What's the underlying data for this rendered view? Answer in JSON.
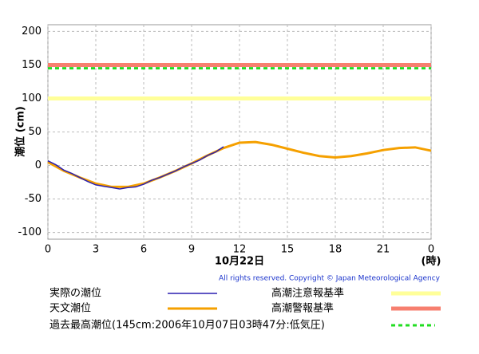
{
  "chart_data": {
    "type": "line",
    "y_label": "潮位 (cm)",
    "x_label": "10月22日",
    "x_unit_label": "(時)",
    "copyright": "All rights reserved. Copyright © Japan Meteorological Agency",
    "xlim": [
      0,
      24
    ],
    "xticks": [
      0,
      3,
      6,
      9,
      12,
      15,
      18,
      21,
      {
        "value": 24,
        "label": "0"
      }
    ],
    "ylim": [
      -110,
      210
    ],
    "yticks": [
      -100,
      -50,
      0,
      50,
      100,
      150,
      200
    ],
    "grid": true,
    "series": [
      {
        "name": "実際の潮位",
        "color": "#2a1fb0",
        "x": [
          0,
          0.5,
          1,
          1.5,
          2,
          2.5,
          3,
          3.5,
          4,
          4.5,
          5,
          5.5,
          6,
          6.5,
          7,
          7.5,
          8,
          8.5,
          9,
          9.5,
          10,
          10.5,
          11
        ],
        "values": [
          7,
          1,
          -7,
          -12,
          -18,
          -24,
          -29,
          -31,
          -33,
          -35,
          -33,
          -32,
          -28,
          -22,
          -18,
          -13,
          -8,
          -2,
          3,
          8,
          15,
          20,
          28
        ]
      },
      {
        "name": "天文潮位",
        "color": "#f5a000",
        "x": [
          0,
          1,
          2,
          3,
          4,
          5,
          6,
          7,
          8,
          9,
          10,
          11,
          12,
          13,
          14,
          15,
          16,
          17,
          18,
          19,
          20,
          21,
          22,
          23,
          24
        ],
        "values": [
          5,
          -8,
          -18,
          -27,
          -32,
          -32,
          -27,
          -18,
          -8,
          3,
          15,
          26,
          34,
          35,
          31,
          25,
          19,
          14,
          12,
          14,
          18,
          23,
          26,
          27,
          22
        ]
      }
    ],
    "reference_lines": [
      {
        "name": "高潮注意報基準",
        "value": 100,
        "color": "#ffff99",
        "dashed": false
      },
      {
        "name": "高潮警報基準",
        "value": 150,
        "color": "#f77f6f",
        "dashed": false
      },
      {
        "name": "過去最高潮位(145cm:2006年10月07日03時47分:低気圧)",
        "value": 145,
        "color": "#22dd22",
        "dashed": true
      }
    ]
  }
}
